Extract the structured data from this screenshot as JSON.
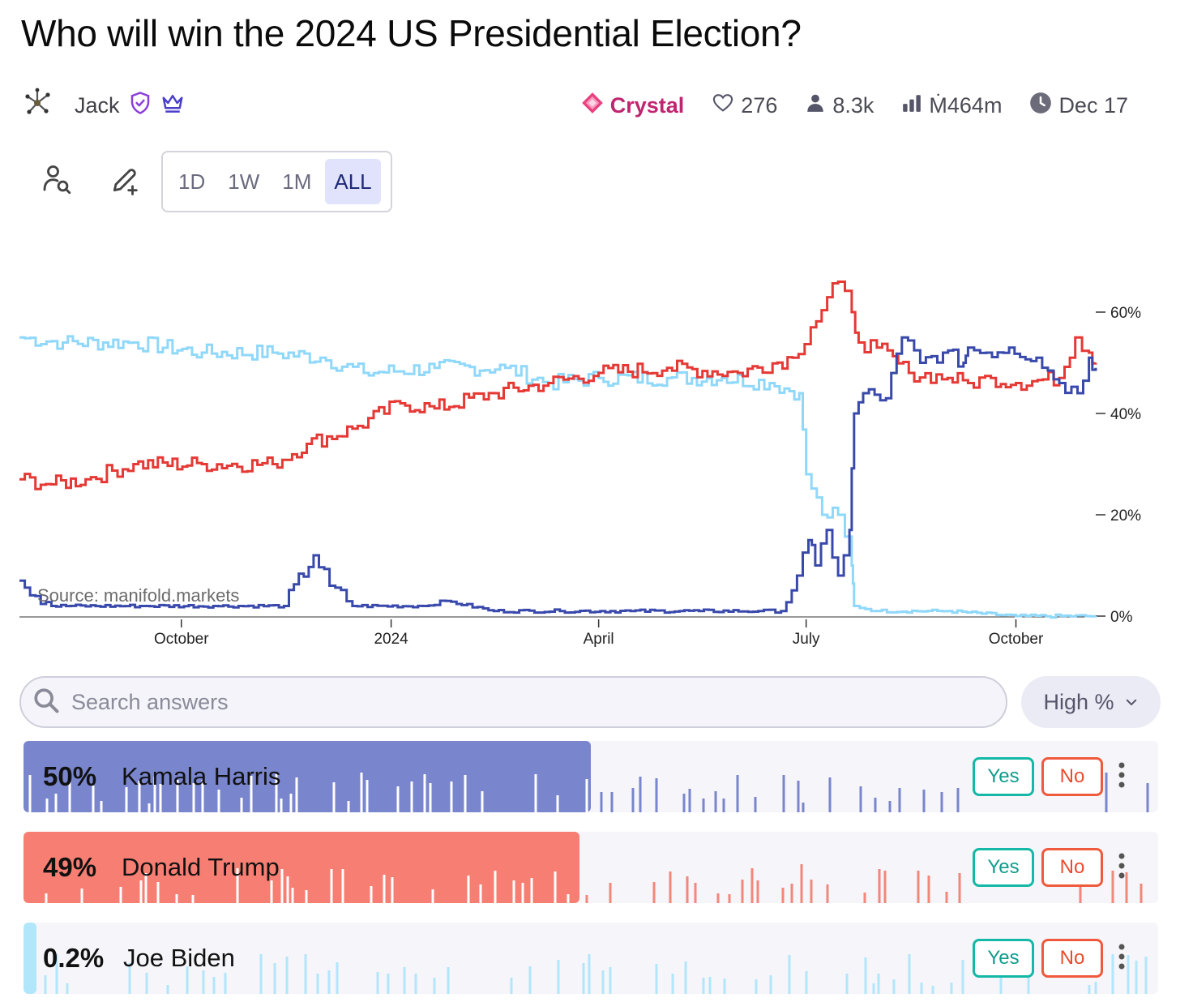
{
  "title": "Who will win the 2024 US Presidential Election?",
  "creator": {
    "name": "Jack",
    "avatar_icon": "avatar",
    "badges": [
      "verified-shield-icon",
      "crown-icon"
    ]
  },
  "stats": {
    "tier_label": "Crystal",
    "likes": "276",
    "traders": "8.3k",
    "volume": "Ṁ464m",
    "close_date": "Dec 17"
  },
  "toolbar": {
    "ranges": [
      "1D",
      "1W",
      "1M",
      "ALL"
    ],
    "active_range": "ALL"
  },
  "chart_data": {
    "type": "line",
    "source_label": "Source: manifold.markets",
    "x_ticks": [
      "October",
      "2024",
      "April",
      "July",
      "October"
    ],
    "y_ticks": [
      "0%",
      "20%",
      "40%",
      "60%"
    ],
    "ylim": [
      0,
      60
    ],
    "x_start": "2023-07-22",
    "x_end": "2024-11-05",
    "series": [
      {
        "name": "Kamala Harris",
        "color": "#3949ab",
        "points": [
          [
            "2023-07-22",
            7
          ],
          [
            "2023-08-05",
            2
          ],
          [
            "2023-09-15",
            2
          ],
          [
            "2023-10-15",
            2
          ],
          [
            "2023-11-15",
            2
          ],
          [
            "2023-11-28",
            12
          ],
          [
            "2023-12-05",
            6
          ],
          [
            "2023-12-15",
            2
          ],
          [
            "2024-01-15",
            2
          ],
          [
            "2024-01-25",
            3
          ],
          [
            "2024-02-15",
            1
          ],
          [
            "2024-03-15",
            1
          ],
          [
            "2024-04-15",
            1
          ],
          [
            "2024-05-15",
            1
          ],
          [
            "2024-06-10",
            1
          ],
          [
            "2024-06-20",
            1
          ],
          [
            "2024-06-27",
            8
          ],
          [
            "2024-07-02",
            15
          ],
          [
            "2024-07-05",
            10
          ],
          [
            "2024-07-10",
            17
          ],
          [
            "2024-07-15",
            8
          ],
          [
            "2024-07-20",
            17
          ],
          [
            "2024-07-22",
            40
          ],
          [
            "2024-07-26",
            44
          ],
          [
            "2024-08-05",
            43
          ],
          [
            "2024-08-12",
            55
          ],
          [
            "2024-08-20",
            50
          ],
          [
            "2024-08-30",
            52
          ],
          [
            "2024-09-08",
            50
          ],
          [
            "2024-09-10",
            53
          ],
          [
            "2024-09-18",
            52
          ],
          [
            "2024-09-28",
            53
          ],
          [
            "2024-10-10",
            51
          ],
          [
            "2024-10-20",
            46
          ],
          [
            "2024-10-28",
            44
          ],
          [
            "2024-11-02",
            51
          ],
          [
            "2024-11-05",
            49
          ]
        ]
      },
      {
        "name": "Donald Trump",
        "color": "#e53935",
        "points": [
          [
            "2023-07-22",
            27
          ],
          [
            "2023-08-05",
            26
          ],
          [
            "2023-08-20",
            27
          ],
          [
            "2023-09-10",
            30
          ],
          [
            "2023-10-10",
            30
          ],
          [
            "2023-11-10",
            30
          ],
          [
            "2023-11-25",
            34
          ],
          [
            "2023-12-15",
            37
          ],
          [
            "2024-01-05",
            42
          ],
          [
            "2024-01-20",
            41
          ],
          [
            "2024-02-15",
            44
          ],
          [
            "2024-03-10",
            46
          ],
          [
            "2024-04-01",
            48
          ],
          [
            "2024-05-01",
            49
          ],
          [
            "2024-06-01",
            48
          ],
          [
            "2024-06-25",
            51
          ],
          [
            "2024-07-03",
            57
          ],
          [
            "2024-07-15",
            66
          ],
          [
            "2024-07-21",
            60
          ],
          [
            "2024-07-24",
            54
          ],
          [
            "2024-08-01",
            53
          ],
          [
            "2024-08-15",
            48
          ],
          [
            "2024-09-01",
            47
          ],
          [
            "2024-09-10",
            46
          ],
          [
            "2024-09-20",
            47
          ],
          [
            "2024-10-01",
            46
          ],
          [
            "2024-10-20",
            47
          ],
          [
            "2024-10-27",
            55
          ],
          [
            "2024-11-02",
            52
          ],
          [
            "2024-11-05",
            50
          ]
        ]
      },
      {
        "name": "Joe Biden",
        "color": "#90d8fa",
        "points": [
          [
            "2023-07-22",
            55
          ],
          [
            "2023-08-10",
            54
          ],
          [
            "2023-09-10",
            54
          ],
          [
            "2023-10-10",
            52
          ],
          [
            "2023-11-10",
            52
          ],
          [
            "2023-12-01",
            51
          ],
          [
            "2023-12-20",
            48
          ],
          [
            "2024-01-20",
            49
          ],
          [
            "2024-02-20",
            49
          ],
          [
            "2024-03-10",
            46
          ],
          [
            "2024-04-01",
            47
          ],
          [
            "2024-05-01",
            47
          ],
          [
            "2024-05-25",
            47
          ],
          [
            "2024-06-15",
            46
          ],
          [
            "2024-06-28",
            44
          ],
          [
            "2024-07-01",
            28
          ],
          [
            "2024-07-08",
            20
          ],
          [
            "2024-07-15",
            20
          ],
          [
            "2024-07-21",
            10
          ],
          [
            "2024-07-22",
            2
          ],
          [
            "2024-08-01",
            1
          ],
          [
            "2024-09-01",
            1
          ],
          [
            "2024-10-01",
            0
          ],
          [
            "2024-11-05",
            0
          ]
        ]
      }
    ]
  },
  "search": {
    "placeholder": "Search answers"
  },
  "sort": {
    "label": "High %"
  },
  "answers": [
    {
      "name": "Kamala Harris",
      "pct_label": "50%",
      "prob": 0.5,
      "fill_color": "#7985cc",
      "spark_color_on": "#ffffff",
      "spark_color_off": "#7985cc",
      "yes_label": "Yes",
      "no_label": "No"
    },
    {
      "name": "Donald Trump",
      "pct_label": "49%",
      "prob": 0.49,
      "fill_color": "#f77e72",
      "spark_color_on": "#ffffff",
      "spark_color_off": "#f2877a",
      "yes_label": "Yes",
      "no_label": "No"
    },
    {
      "name": "Joe Biden",
      "pct_label": "0.2%",
      "prob": 0.002,
      "fill_color": "#b2e6fb",
      "spark_color_on": "#b2e6fb",
      "spark_color_off": "#b2e6fb",
      "yes_label": "Yes",
      "no_label": "No"
    }
  ]
}
